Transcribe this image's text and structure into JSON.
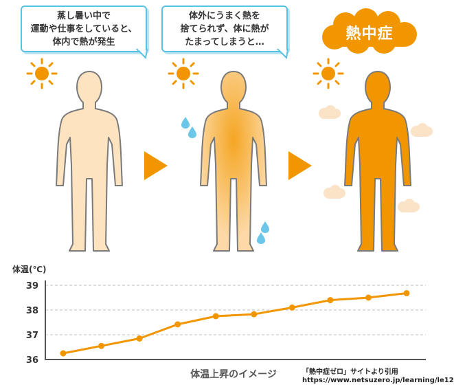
{
  "bubbles": [
    {
      "lines": [
        "蒸し暑い中で",
        "運動や仕事をしていると、",
        "体内で熱が発生"
      ]
    },
    {
      "lines": [
        "体外にうまく熱を",
        "捨てられず、体に熱が",
        "たまってしまうと…"
      ]
    }
  ],
  "result_label": "熱中症",
  "colors": {
    "bubble_border": "#58c1e3",
    "sun": "#f29600",
    "figure_1": "#fde3bf",
    "figure_2_outer": "#fcd9a6",
    "figure_2_center": "#f5a623",
    "figure_3": "#f29600",
    "figure_outline": "#7a7a7a",
    "arrow": "#f29600",
    "cloud": "#f29600",
    "sweat": "#6cc6ea",
    "steam": "#fbe3c8",
    "line": "#f29600"
  },
  "chart_data": {
    "type": "line",
    "ylabel": "体温(℃)",
    "xlabel": "体温上昇のイメージ",
    "ylim": [
      36,
      39
    ],
    "yticks": [
      36,
      37,
      38,
      39
    ],
    "grid": true,
    "values": [
      36.25,
      36.55,
      36.85,
      37.42,
      37.75,
      37.83,
      38.1,
      38.4,
      38.5,
      38.68
    ]
  },
  "credit": {
    "line1": "「熱中症ゼロ」サイトより引用",
    "line2": "https://www.netsuzero.jp/learning/le12"
  }
}
